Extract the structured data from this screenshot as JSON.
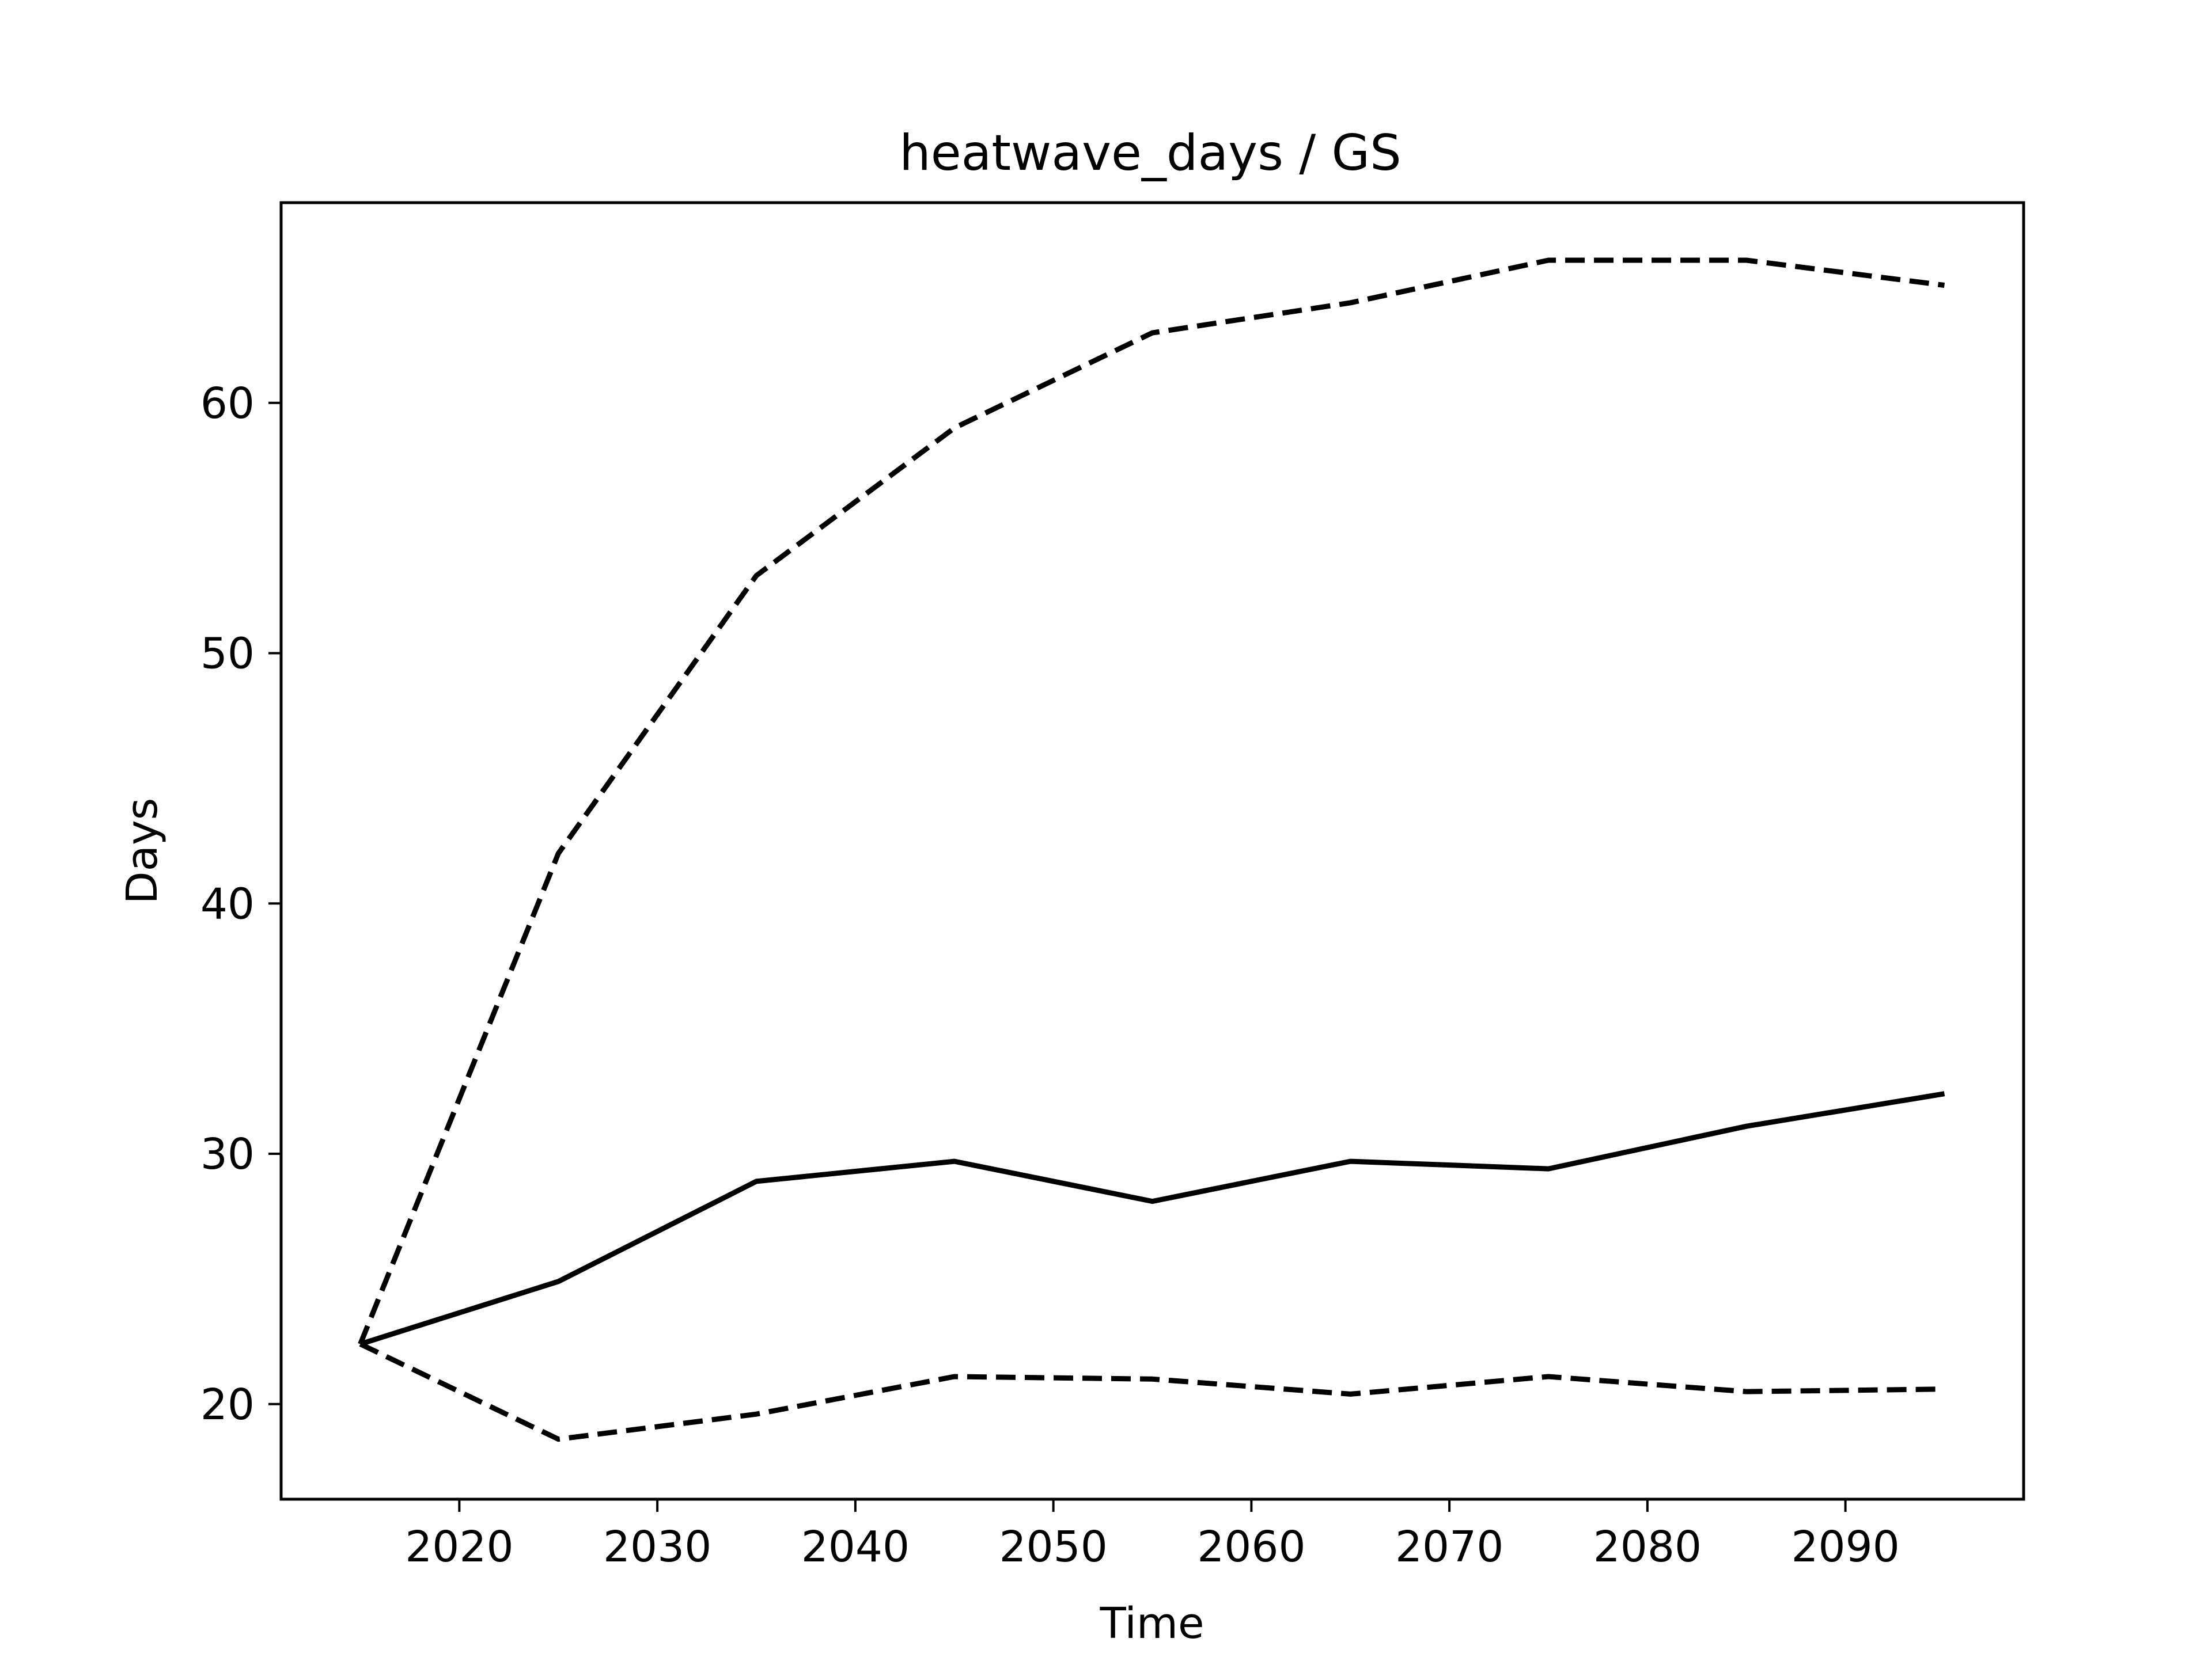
{
  "chart_data": {
    "type": "line",
    "title": "heatwave_days / GS",
    "xlabel": "Time",
    "ylabel": "Days",
    "xlim": [
      2011,
      2099
    ],
    "ylim": [
      16.2,
      68.0
    ],
    "x_ticks": [
      2020,
      2030,
      2040,
      2050,
      2060,
      2070,
      2080,
      2090
    ],
    "y_ticks": [
      20,
      30,
      40,
      50,
      60
    ],
    "grid": false,
    "legend": "none",
    "x": [
      2015,
      2025,
      2035,
      2045,
      2055,
      2065,
      2075,
      2085,
      2095
    ],
    "series": [
      {
        "style": "solid",
        "color": "#000000",
        "values": [
          22.4,
          24.9,
          28.9,
          29.7,
          28.1,
          29.7,
          29.4,
          31.1,
          32.4
        ]
      },
      {
        "style": "dashed",
        "color": "#000000",
        "values": [
          22.4,
          42.0,
          53.1,
          59.0,
          62.8,
          64.0,
          65.7,
          65.7,
          64.7
        ]
      },
      {
        "style": "dashed",
        "color": "#000000",
        "values": [
          22.4,
          18.6,
          19.6,
          21.1,
          21.0,
          20.4,
          21.1,
          20.5,
          20.6
        ]
      }
    ]
  }
}
